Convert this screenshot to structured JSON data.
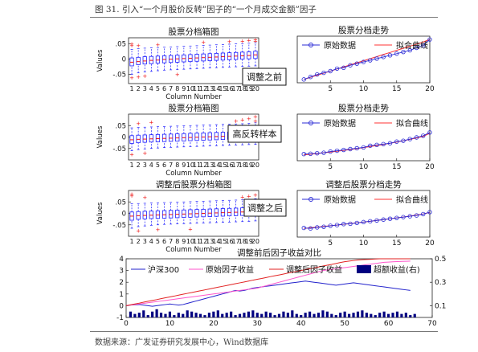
{
  "caption": "图 31. 引入“一个月股价反转”因子的“一个月成交金额”因子",
  "source": "数据来源：广发证券研究发展中心，Wind数据库",
  "colors": {
    "box": "#1a1aff",
    "median": "#ee1111",
    "outlier": "#ee1111",
    "raw_series": "#2b2bd6",
    "fit_series": "#ff3333",
    "hs300": "#2222cc",
    "raw_factor": "#ff55cc",
    "adj_factor": "#e22222",
    "excess": "#000080"
  },
  "panels": {
    "box1_title": "股票分档箱图",
    "box2_title": "股票分档箱图",
    "box3_title": "调整后股票分档箱图",
    "box_xlabel": "Column Number",
    "box_ylabel": "Values",
    "trend1_title": "股票分档走势",
    "trend2_title": "股票分档走势",
    "trend3_title": "调整后股票分档走势",
    "legend_raw": "原始数据",
    "legend_fit": "拟合曲线",
    "legend_fit_alt": "拟合曲线"
  },
  "annotations": {
    "before": "调整之前",
    "sample": "高反转样本",
    "after": "调整之后"
  },
  "chart_data": [
    {
      "type": "box",
      "title": "股票分档箱图",
      "xlabel": "Column Number",
      "ylabel": "Values",
      "categories": [
        "1",
        "2",
        "3",
        "4",
        "5",
        "6",
        "7",
        "8",
        "9",
        "10",
        "11",
        "12",
        "13",
        "14",
        "15",
        "16",
        "17",
        "18",
        "19",
        "20"
      ],
      "ylim": [
        -0.08,
        0.07
      ],
      "yticks": [
        -0.05,
        0,
        0.05
      ],
      "medians": [
        -0.01,
        -0.008,
        -0.006,
        -0.004,
        -0.003,
        -0.001,
        0.0,
        0.001,
        0.002,
        0.003,
        0.004,
        0.005,
        0.006,
        0.007,
        0.008,
        0.009,
        0.01,
        0.011,
        0.012,
        0.014
      ],
      "q1": [
        -0.022,
        -0.018,
        -0.016,
        -0.015,
        -0.013,
        -0.012,
        -0.011,
        -0.01,
        -0.009,
        -0.008,
        -0.007,
        -0.006,
        -0.005,
        -0.004,
        -0.003,
        -0.002,
        -0.001,
        0.0,
        0.001,
        0.002
      ],
      "q3": [
        0.004,
        0.006,
        0.008,
        0.009,
        0.01,
        0.011,
        0.012,
        0.013,
        0.014,
        0.015,
        0.016,
        0.017,
        0.018,
        0.019,
        0.02,
        0.021,
        0.022,
        0.023,
        0.024,
        0.026
      ],
      "whisker_low": [
        -0.05,
        -0.045,
        -0.042,
        -0.04,
        -0.038,
        -0.036,
        -0.035,
        -0.034,
        -0.033,
        -0.032,
        -0.031,
        -0.03,
        -0.029,
        -0.028,
        -0.027,
        -0.026,
        -0.025,
        -0.024,
        -0.023,
        -0.022
      ],
      "whisker_high": [
        0.032,
        0.034,
        0.036,
        0.037,
        0.038,
        0.039,
        0.04,
        0.041,
        0.042,
        0.043,
        0.044,
        0.045,
        0.046,
        0.047,
        0.048,
        0.049,
        0.05,
        0.051,
        0.052,
        0.054
      ],
      "outliers": [
        [
          1,
          0.045
        ],
        [
          1,
          0.05
        ],
        [
          1,
          -0.06
        ],
        [
          2,
          0.045
        ],
        [
          2,
          -0.058
        ],
        [
          3,
          -0.055
        ],
        [
          5,
          0.048
        ],
        [
          8,
          -0.05
        ],
        [
          12,
          0.055
        ],
        [
          16,
          0.058
        ],
        [
          18,
          0.06
        ],
        [
          19,
          0.062
        ],
        [
          20,
          0.065
        ],
        [
          20,
          0.06
        ]
      ]
    },
    {
      "type": "line",
      "title": "股票分档走势",
      "x": [
        1,
        2,
        3,
        4,
        5,
        6,
        7,
        8,
        9,
        10,
        11,
        12,
        13,
        14,
        15,
        16,
        17,
        18,
        19,
        20
      ],
      "series": [
        {
          "name": "原始数据",
          "values": [
            -0.01,
            -0.0085,
            -0.007,
            -0.006,
            -0.005,
            -0.0035,
            -0.003,
            -0.0015,
            -0.0005,
            0.0005,
            0.0015,
            0.0025,
            0.0035,
            0.0045,
            0.0055,
            0.0065,
            0.0075,
            0.009,
            0.0105,
            0.014
          ]
        },
        {
          "name": "拟合曲线",
          "values": [
            -0.01,
            -0.0087,
            -0.0075,
            -0.0062,
            -0.005,
            -0.0037,
            -0.0025,
            -0.0012,
            0.0,
            0.0012,
            0.0025,
            0.0037,
            0.005,
            0.0062,
            0.0075,
            0.0087,
            0.01,
            0.0112,
            0.0125,
            0.014
          ]
        }
      ],
      "xlim": [
        0,
        20
      ],
      "xticks": [
        5,
        10,
        15,
        20
      ],
      "ylim": [
        -0.012,
        0.016
      ]
    },
    {
      "type": "box",
      "title": "股票分档箱图",
      "xlabel": "Column Number",
      "ylabel": "Values",
      "categories": [
        "1",
        "2",
        "3",
        "4",
        "5",
        "6",
        "7",
        "8",
        "9",
        "10",
        "11",
        "12",
        "13",
        "14",
        "15",
        "16",
        "17",
        "18",
        "19",
        "20"
      ],
      "ylim": [
        -0.1,
        0.1
      ],
      "yticks": [
        -0.05,
        0,
        0.05
      ],
      "medians": [
        -0.012,
        -0.01,
        -0.009,
        -0.008,
        -0.007,
        -0.006,
        -0.005,
        -0.004,
        -0.003,
        -0.002,
        -0.001,
        0.0,
        0.001,
        0.002,
        0.003,
        0.004,
        0.005,
        0.006,
        0.007,
        0.008
      ],
      "q1": [
        -0.028,
        -0.025,
        -0.023,
        -0.022,
        -0.021,
        -0.02,
        -0.019,
        -0.018,
        -0.017,
        -0.016,
        -0.015,
        -0.014,
        -0.013,
        -0.012,
        -0.011,
        -0.01,
        -0.009,
        -0.008,
        -0.007,
        -0.006
      ],
      "q3": [
        0.006,
        0.008,
        0.009,
        0.01,
        0.011,
        0.012,
        0.013,
        0.014,
        0.015,
        0.016,
        0.017,
        0.018,
        0.019,
        0.02,
        0.021,
        0.022,
        0.023,
        0.024,
        0.025,
        0.026
      ],
      "whisker_low": [
        -0.06,
        -0.055,
        -0.052,
        -0.05,
        -0.048,
        -0.046,
        -0.045,
        -0.044,
        -0.043,
        -0.042,
        -0.041,
        -0.04,
        -0.039,
        -0.038,
        -0.037,
        -0.036,
        -0.035,
        -0.034,
        -0.033,
        -0.032
      ],
      "whisker_high": [
        0.04,
        0.042,
        0.043,
        0.044,
        0.045,
        0.046,
        0.047,
        0.048,
        0.049,
        0.05,
        0.051,
        0.052,
        0.053,
        0.054,
        0.055,
        0.056,
        0.057,
        0.058,
        0.06,
        0.062
      ],
      "outliers": [
        [
          1,
          -0.075
        ],
        [
          2,
          0.06
        ],
        [
          3,
          -0.07
        ],
        [
          4,
          0.065
        ],
        [
          17,
          0.07
        ],
        [
          18,
          0.075
        ],
        [
          19,
          0.08
        ],
        [
          20,
          0.09
        ],
        [
          20,
          0.07
        ]
      ]
    },
    {
      "type": "line",
      "title": "股票分档走势",
      "x": [
        1,
        2,
        3,
        4,
        5,
        6,
        7,
        8,
        9,
        10,
        11,
        12,
        13,
        14,
        15,
        16,
        17,
        18,
        19,
        20
      ],
      "series": [
        {
          "name": "原始数据",
          "values": [
            -0.008,
            -0.0078,
            -0.0075,
            -0.0072,
            -0.0065,
            -0.006,
            -0.0055,
            -0.005,
            -0.0045,
            -0.004,
            -0.003,
            -0.0025,
            -0.002,
            -0.0015,
            -0.0005,
            0.0,
            0.001,
            0.002,
            0.003,
            0.005
          ]
        },
        {
          "name": "拟合曲线",
          "values": [
            -0.0085,
            -0.0081,
            -0.0077,
            -0.0072,
            -0.0068,
            -0.0063,
            -0.0058,
            -0.0053,
            -0.0047,
            -0.0041,
            -0.0035,
            -0.0029,
            -0.0022,
            -0.0015,
            -0.0008,
            0.0,
            0.0008,
            0.0017,
            0.0026,
            0.0045
          ]
        }
      ],
      "xlim": [
        0,
        20
      ],
      "xticks": [
        5,
        10,
        15,
        20
      ],
      "ylim": [
        -0.012,
        0.016
      ]
    },
    {
      "type": "box",
      "title": "调整后股票分档箱图",
      "xlabel": "Column Number",
      "ylabel": "Values",
      "categories": [
        "1",
        "2",
        "3",
        "4",
        "5",
        "6",
        "7",
        "8",
        "9",
        "10",
        "11",
        "12",
        "13",
        "14",
        "15",
        "16",
        "17",
        "18",
        "19",
        "20"
      ],
      "ylim": [
        -0.1,
        0.1
      ],
      "yticks": [
        -0.05,
        0,
        0.05
      ],
      "medians": [
        -0.012,
        -0.01,
        -0.009,
        -0.008,
        -0.007,
        -0.006,
        -0.005,
        -0.004,
        -0.003,
        -0.002,
        -0.001,
        0.0,
        0.001,
        0.002,
        0.003,
        0.004,
        0.005,
        0.006,
        0.007,
        0.009
      ],
      "q1": [
        -0.03,
        -0.026,
        -0.024,
        -0.023,
        -0.022,
        -0.021,
        -0.02,
        -0.019,
        -0.018,
        -0.017,
        -0.016,
        -0.015,
        -0.014,
        -0.013,
        -0.012,
        -0.011,
        -0.01,
        -0.009,
        -0.008,
        -0.006
      ],
      "q3": [
        0.006,
        0.008,
        0.009,
        0.01,
        0.011,
        0.012,
        0.013,
        0.014,
        0.015,
        0.016,
        0.017,
        0.018,
        0.019,
        0.02,
        0.021,
        0.022,
        0.023,
        0.024,
        0.025,
        0.028
      ],
      "whisker_low": [
        -0.065,
        -0.058,
        -0.055,
        -0.052,
        -0.05,
        -0.048,
        -0.047,
        -0.046,
        -0.045,
        -0.044,
        -0.043,
        -0.042,
        -0.041,
        -0.04,
        -0.039,
        -0.038,
        -0.037,
        -0.036,
        -0.035,
        -0.033
      ],
      "whisker_high": [
        0.042,
        0.043,
        0.044,
        0.045,
        0.046,
        0.047,
        0.048,
        0.049,
        0.05,
        0.051,
        0.052,
        0.053,
        0.054,
        0.055,
        0.056,
        0.057,
        0.058,
        0.059,
        0.06,
        0.064
      ],
      "outliers": [
        [
          1,
          0.085
        ],
        [
          1,
          0.078
        ],
        [
          2,
          -0.075
        ],
        [
          3,
          0.07
        ],
        [
          5,
          -0.07
        ],
        [
          10,
          -0.068
        ],
        [
          18,
          0.072
        ],
        [
          19,
          0.075
        ],
        [
          20,
          0.08
        ]
      ]
    },
    {
      "type": "line",
      "title": "调整后股票分档走势",
      "x": [
        1,
        2,
        3,
        4,
        5,
        6,
        7,
        8,
        9,
        10,
        11,
        12,
        13,
        14,
        15,
        16,
        17,
        18,
        19,
        20
      ],
      "series": [
        {
          "name": "原始数据",
          "values": [
            -0.0065,
            -0.0068,
            -0.0062,
            -0.0058,
            -0.0052,
            -0.0048,
            -0.0042,
            -0.004,
            -0.0035,
            -0.003,
            -0.0025,
            -0.002,
            -0.0015,
            -0.001,
            -0.0005,
            0.0,
            0.0005,
            0.001,
            0.0018,
            0.003
          ]
        },
        {
          "name": "拟合曲线",
          "values": [
            -0.0068,
            -0.0064,
            -0.006,
            -0.0056,
            -0.0052,
            -0.0048,
            -0.0043,
            -0.0039,
            -0.0034,
            -0.003,
            -0.0025,
            -0.002,
            -0.0015,
            -0.001,
            -0.0005,
            0.0,
            0.0006,
            0.0012,
            0.0019,
            0.0028
          ]
        }
      ],
      "xlim": [
        0,
        20
      ],
      "xticks": [
        5,
        10,
        15,
        20
      ],
      "ylim": [
        -0.012,
        0.016
      ]
    },
    {
      "type": "line",
      "title": "调整前后因子收益对比",
      "xlim": [
        0,
        70
      ],
      "xticks": [
        0,
        10,
        20,
        30,
        40,
        50,
        60,
        70
      ],
      "ylim": [
        -1,
        4
      ],
      "yticks": [
        -1,
        0,
        1,
        2,
        3,
        4
      ],
      "y2lim": [
        0,
        0.5
      ],
      "y2ticks": [
        0.1,
        0.3,
        0.5
      ],
      "y2label": "",
      "series": [
        {
          "name": "沪深300",
          "axis": "left",
          "values": [
            0,
            0.05,
            0.08,
            0.1,
            0.05,
            0,
            -0.05,
            0,
            0.05,
            0.1,
            0.15,
            0.1,
            0.05,
            0.1,
            0.2,
            0.3,
            0.4,
            0.5,
            0.6,
            0.7,
            0.8,
            0.9,
            1.0,
            1.1,
            1.2,
            1.3,
            1.25,
            1.3,
            1.4,
            1.5,
            1.55,
            1.6,
            1.65,
            1.7,
            1.75,
            1.8,
            1.85,
            1.9,
            1.95,
            2.0,
            2.05,
            2.1,
            2.05,
            2.0,
            1.95,
            1.9,
            1.85,
            1.8,
            1.75,
            1.8,
            1.85,
            1.9,
            1.95,
            1.9,
            1.85,
            1.8,
            1.75,
            1.7,
            1.65,
            1.6,
            1.55,
            1.5,
            1.45,
            1.4,
            1.35,
            1.3
          ]
        },
        {
          "name": "原始因子收益",
          "axis": "left",
          "values": [
            0,
            0.05,
            0.1,
            0.15,
            0.2,
            0.25,
            0.3,
            0.35,
            0.4,
            0.45,
            0.5,
            0.55,
            0.6,
            0.65,
            0.7,
            0.75,
            0.8,
            0.85,
            0.9,
            0.95,
            1.0,
            1.05,
            1.1,
            1.15,
            1.2,
            1.25,
            1.3,
            1.35,
            1.4,
            1.45,
            1.5,
            1.6,
            1.7,
            1.8,
            1.9,
            2.0,
            2.1,
            2.2,
            2.3,
            2.4,
            2.5,
            2.6,
            2.7,
            2.8,
            2.9,
            3.0,
            3.05,
            3.1,
            3.15,
            3.2,
            3.25,
            3.3,
            3.35,
            3.4,
            3.45,
            3.5,
            3.55,
            3.6,
            3.65,
            3.7,
            3.72,
            3.74,
            3.76,
            3.78,
            3.79,
            3.8
          ]
        },
        {
          "name": "调整后因子收益",
          "axis": "left",
          "values": [
            0,
            0.08,
            0.15,
            0.22,
            0.3,
            0.38,
            0.45,
            0.52,
            0.6,
            0.68,
            0.75,
            0.82,
            0.9,
            0.98,
            1.05,
            1.12,
            1.2,
            1.28,
            1.35,
            1.42,
            1.5,
            1.58,
            1.65,
            1.72,
            1.8,
            1.88,
            1.95,
            2.02,
            2.1,
            2.18,
            2.25,
            2.32,
            2.4,
            2.48,
            2.55,
            2.62,
            2.7,
            2.78,
            2.85,
            2.92,
            3.0,
            3.08,
            3.15,
            3.22,
            3.3,
            3.38,
            3.45,
            3.52,
            3.6,
            3.68,
            3.75,
            3.8,
            3.85,
            3.9,
            3.92,
            3.94,
            3.96,
            3.98,
            4.0,
            4.0,
            4.0,
            4.0,
            4.0,
            4.0,
            4.0,
            4.0
          ]
        },
        {
          "name": "超额收益(右)",
          "axis": "right",
          "type": "bar",
          "values": [
            0.05,
            0.03,
            0.04,
            0.06,
            0.02,
            0.05,
            0.07,
            0.04,
            0.03,
            0.05,
            0.02,
            0.04,
            0.03,
            0.06,
            0.05,
            0.04,
            0.03,
            0.02,
            0.04,
            0.05,
            0.06,
            0.03,
            0.04,
            0.05,
            0.02,
            0.03,
            0.04,
            0.05,
            0.06,
            0.04,
            0.03,
            0.05,
            0.04,
            0.02,
            0.03,
            0.05,
            0.04,
            0.06,
            0.03,
            0.02,
            0.04,
            0.05,
            0.03,
            0.04,
            0.06,
            0.05,
            0.03,
            0.02,
            0.04,
            0.05,
            0.03,
            0.04,
            0.05,
            0.06,
            0.04,
            0.03,
            0.02,
            0.04,
            0.05,
            0.03,
            0.04,
            0.05,
            0.03,
            0.04,
            0.02,
            0.03
          ]
        }
      ]
    }
  ]
}
